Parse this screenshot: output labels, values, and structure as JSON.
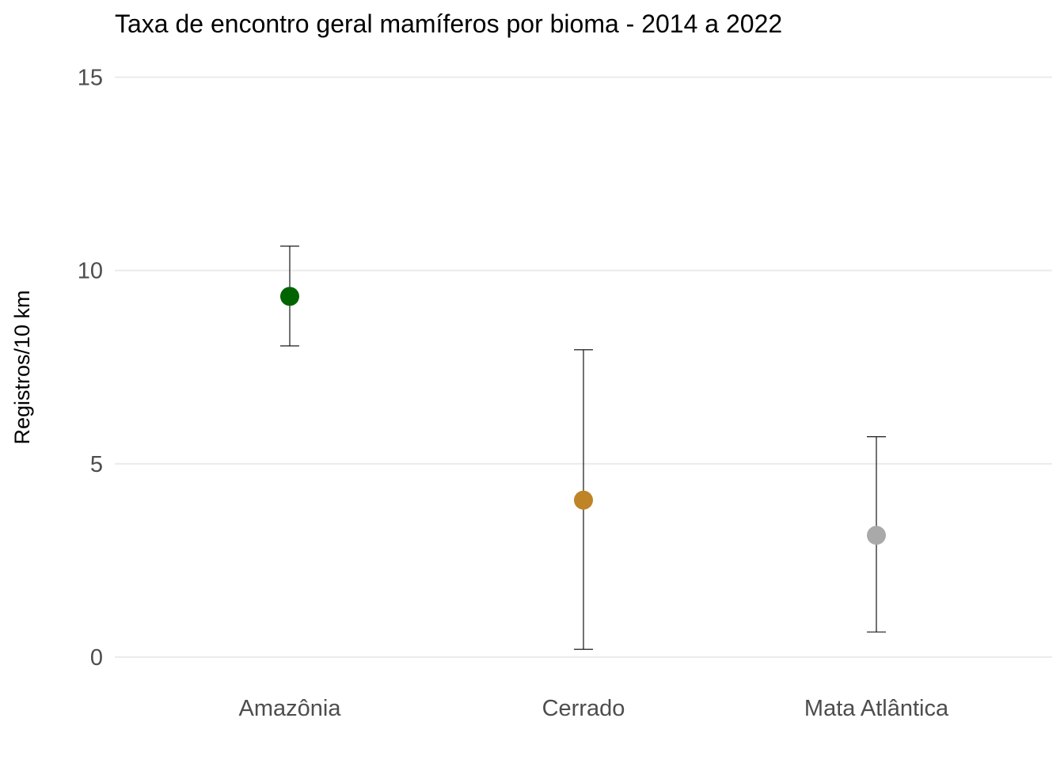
{
  "chart_data": {
    "type": "scatter",
    "title": "Taxa de encontro geral mamíferos por bioma - 2014 a 2022",
    "xlabel": "",
    "ylabel": "Registros/10 km",
    "ylim": [
      0,
      15
    ],
    "y_ticks": [
      0,
      5,
      10,
      15
    ],
    "grid": true,
    "legend": "none",
    "categories": [
      "Amazônia",
      "Cerrado",
      "Mata Atlântica"
    ],
    "points": [
      {
        "category": "Amazônia",
        "value": 9.33,
        "lower": 8.05,
        "upper": 10.63,
        "color": "#006400"
      },
      {
        "category": "Cerrado",
        "value": 4.06,
        "lower": 0.2,
        "upper": 7.95,
        "color": "#BF8426"
      },
      {
        "category": "Mata Atlântica",
        "value": 3.15,
        "lower": 0.65,
        "upper": 5.7,
        "color": "#A9A9A9"
      }
    ]
  }
}
